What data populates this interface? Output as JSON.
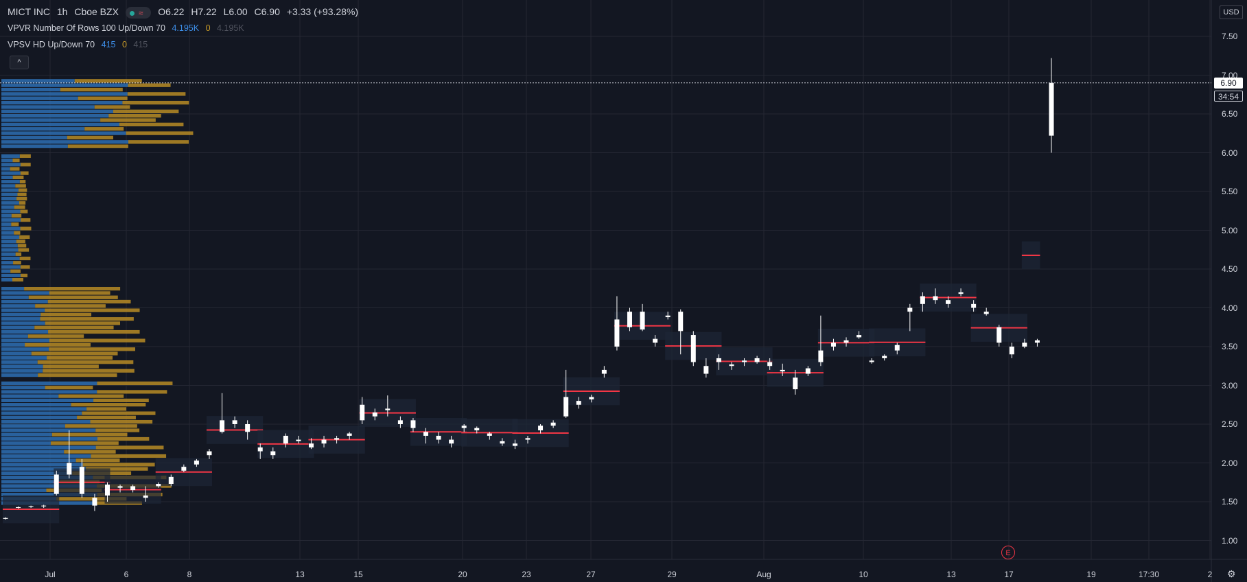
{
  "header": {
    "symbol": "MICT INC",
    "interval": "1h",
    "exchange": "Cboe BZX",
    "wave_icon": "≈",
    "open": "O6.22",
    "high": "H7.22",
    "low": "L6.00",
    "close": "C6.90",
    "change": "+3.33 (+93.28%)"
  },
  "indicators": [
    {
      "name": "VPVR Number Of Rows 100 Up/Down 70",
      "v1": "4.195K",
      "v2": "0",
      "v3": "4.195K"
    },
    {
      "name": "VPSV HD Up/Down 70",
      "v1": "415",
      "v2": "0",
      "v3": "415"
    }
  ],
  "collapse_label": "^",
  "currency": "USD",
  "last_price": "6.90",
  "countdown": "34:54",
  "earnings_label": "E",
  "settings_icon": "gear-icon",
  "colors": {
    "background": "#131722",
    "up_volume": "#2e6fb3",
    "down_volume": "#b78b24",
    "poc": "#f23645",
    "candle": "#ffffff"
  },
  "y_axis": {
    "ticks": [
      "7.50",
      "7.00",
      "6.50",
      "6.00",
      "5.50",
      "5.00",
      "4.50",
      "4.00",
      "3.50",
      "3.00",
      "2.50",
      "2.00",
      "1.50",
      "1.00"
    ]
  },
  "x_axis": {
    "ticks": [
      "Jul",
      "6",
      "8",
      "13",
      "15",
      "20",
      "23",
      "27",
      "29",
      "Aug",
      "10",
      "13",
      "17",
      "19",
      "17:30",
      "2"
    ]
  },
  "chart_data": {
    "type": "candlestick",
    "ylim": [
      0.8,
      7.65
    ],
    "candles": [
      [
        1.28,
        1.3,
        1.27,
        1.29
      ],
      [
        1.42,
        1.44,
        1.41,
        1.43
      ],
      [
        1.43,
        1.45,
        1.42,
        1.44
      ],
      [
        1.44,
        1.46,
        1.42,
        1.45
      ],
      [
        1.6,
        1.9,
        1.58,
        1.85
      ],
      [
        1.85,
        2.42,
        1.8,
        2.0
      ],
      [
        1.95,
        2.05,
        1.55,
        1.6
      ],
      [
        1.45,
        1.6,
        1.38,
        1.55
      ],
      [
        1.58,
        1.75,
        1.5,
        1.72
      ],
      [
        1.68,
        1.72,
        1.62,
        1.7
      ],
      [
        1.7,
        1.72,
        1.62,
        1.65
      ],
      [
        1.58,
        1.7,
        1.5,
        1.55
      ],
      [
        1.7,
        1.75,
        1.68,
        1.73
      ],
      [
        1.73,
        1.85,
        1.7,
        1.82
      ],
      [
        1.9,
        1.98,
        1.88,
        1.95
      ],
      [
        1.98,
        2.05,
        1.95,
        2.03
      ],
      [
        2.1,
        2.18,
        2.05,
        2.15
      ],
      [
        2.4,
        2.9,
        2.38,
        2.55
      ],
      [
        2.55,
        2.6,
        2.45,
        2.5
      ],
      [
        2.4,
        2.55,
        2.3,
        2.5
      ],
      [
        2.15,
        2.25,
        2.05,
        2.2
      ],
      [
        2.1,
        2.2,
        2.05,
        2.15
      ],
      [
        2.25,
        2.38,
        2.2,
        2.35
      ],
      [
        2.3,
        2.35,
        2.25,
        2.28
      ],
      [
        2.25,
        2.32,
        2.18,
        2.2
      ],
      [
        2.25,
        2.35,
        2.2,
        2.3
      ],
      [
        2.3,
        2.35,
        2.25,
        2.32
      ],
      [
        2.35,
        2.4,
        2.3,
        2.38
      ],
      [
        2.55,
        2.85,
        2.5,
        2.75
      ],
      [
        2.6,
        2.7,
        2.55,
        2.65
      ],
      [
        2.7,
        2.87,
        2.6,
        2.68
      ],
      [
        2.55,
        2.6,
        2.45,
        2.5
      ],
      [
        2.45,
        2.58,
        2.4,
        2.55
      ],
      [
        2.35,
        2.45,
        2.25,
        2.4
      ],
      [
        2.3,
        2.4,
        2.25,
        2.35
      ],
      [
        2.25,
        2.35,
        2.2,
        2.3
      ],
      [
        2.45,
        2.5,
        2.4,
        2.48
      ],
      [
        2.42,
        2.47,
        2.38,
        2.45
      ],
      [
        2.35,
        2.4,
        2.3,
        2.38
      ],
      [
        2.28,
        2.32,
        2.22,
        2.25
      ],
      [
        2.25,
        2.3,
        2.18,
        2.22
      ],
      [
        2.3,
        2.35,
        2.25,
        2.32
      ],
      [
        2.42,
        2.5,
        2.38,
        2.48
      ],
      [
        2.48,
        2.55,
        2.45,
        2.52
      ],
      [
        2.6,
        3.2,
        2.58,
        2.85
      ],
      [
        2.75,
        2.85,
        2.7,
        2.8
      ],
      [
        2.82,
        2.88,
        2.78,
        2.85
      ],
      [
        3.15,
        3.25,
        3.1,
        3.2
      ],
      [
        3.5,
        4.15,
        3.45,
        3.85
      ],
      [
        3.75,
        4.0,
        3.7,
        3.95
      ],
      [
        3.95,
        4.05,
        3.7,
        3.72
      ],
      [
        3.6,
        3.65,
        3.5,
        3.55
      ],
      [
        3.9,
        3.95,
        3.85,
        3.88
      ],
      [
        3.95,
        3.98,
        3.4,
        3.7
      ],
      [
        3.65,
        3.7,
        3.25,
        3.3
      ],
      [
        3.25,
        3.35,
        3.1,
        3.15
      ],
      [
        3.3,
        3.4,
        3.2,
        3.35
      ],
      [
        3.25,
        3.3,
        3.2,
        3.27
      ],
      [
        3.3,
        3.35,
        3.25,
        3.32
      ],
      [
        3.35,
        3.38,
        3.28,
        3.3
      ],
      [
        3.25,
        3.35,
        3.2,
        3.3
      ],
      [
        3.2,
        3.28,
        3.12,
        3.18
      ],
      [
        3.1,
        3.2,
        2.88,
        2.95
      ],
      [
        3.15,
        3.25,
        3.12,
        3.22
      ],
      [
        3.3,
        3.9,
        3.25,
        3.45
      ],
      [
        3.5,
        3.6,
        3.45,
        3.55
      ],
      [
        3.55,
        3.62,
        3.5,
        3.58
      ],
      [
        3.65,
        3.7,
        3.6,
        3.62
      ],
      [
        3.3,
        3.35,
        3.28,
        3.32
      ],
      [
        3.35,
        3.4,
        3.32,
        3.38
      ],
      [
        3.45,
        3.55,
        3.4,
        3.52
      ],
      [
        3.95,
        4.05,
        3.7,
        4.0
      ],
      [
        4.05,
        4.2,
        3.95,
        4.15
      ],
      [
        4.15,
        4.25,
        4.05,
        4.1
      ],
      [
        4.05,
        4.15,
        4.0,
        4.1
      ],
      [
        4.2,
        4.25,
        4.15,
        4.18
      ],
      [
        4.05,
        4.1,
        3.95,
        4.0
      ],
      [
        3.95,
        4.0,
        3.9,
        3.92
      ],
      [
        3.75,
        3.78,
        3.5,
        3.55
      ],
      [
        3.4,
        3.55,
        3.35,
        3.5
      ],
      [
        3.5,
        3.6,
        3.48,
        3.55
      ],
      [
        3.55,
        3.6,
        3.5,
        3.58
      ],
      [
        6.22,
        7.22,
        6.0,
        6.9
      ]
    ],
    "volume_profile": {
      "zones": [
        {
          "lo": 6.05,
          "hi": 6.95,
          "up": 185,
          "down": 98
        },
        {
          "lo": 4.33,
          "hi": 5.98,
          "up": 28,
          "down": 16
        },
        {
          "lo": 3.1,
          "hi": 4.27,
          "up": 70,
          "down": 140
        },
        {
          "lo": 1.45,
          "hi": 3.05,
          "up": 140,
          "down": 110
        }
      ]
    }
  }
}
